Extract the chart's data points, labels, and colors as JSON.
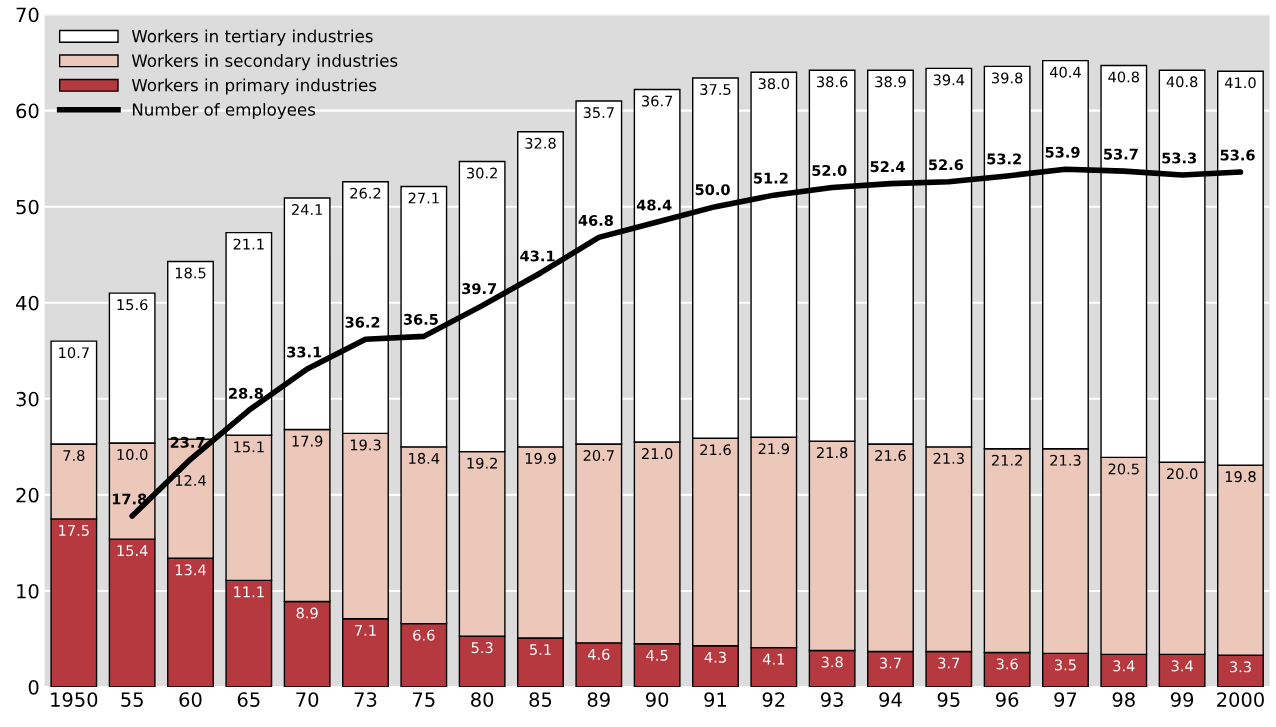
{
  "chart_data": {
    "type": "bar",
    "stacked": true,
    "categories": [
      "1950",
      "55",
      "60",
      "65",
      "70",
      "73",
      "75",
      "80",
      "85",
      "89",
      "90",
      "91",
      "92",
      "93",
      "94",
      "95",
      "96",
      "97",
      "98",
      "99",
      "2000"
    ],
    "series": [
      {
        "name": "Workers in primary industries",
        "color": "#b5393f",
        "values": [
          17.5,
          15.4,
          13.4,
          11.1,
          8.9,
          7.1,
          6.6,
          5.3,
          5.1,
          4.6,
          4.5,
          4.3,
          4.1,
          3.8,
          3.7,
          3.7,
          3.6,
          3.5,
          3.4,
          3.4,
          3.3
        ],
        "value_labels": [
          "17.5",
          "15.4",
          "13.4",
          "11.1",
          "8.9",
          "7.1",
          "6.6",
          "5.3",
          "5.1",
          "4.6",
          "4.5",
          "4.3",
          "4.1",
          "3.8",
          "3.7",
          "3.7",
          "3.6",
          "3.5",
          "3.4",
          "3.4",
          "3.3"
        ]
      },
      {
        "name": "Workers in secondary industries",
        "color": "#ecc8bb",
        "values": [
          7.8,
          10.0,
          12.4,
          15.1,
          17.9,
          19.3,
          18.4,
          19.2,
          19.9,
          20.7,
          21.0,
          21.6,
          21.9,
          21.8,
          21.6,
          21.3,
          21.2,
          21.3,
          20.5,
          20.0,
          19.8
        ],
        "value_labels": [
          "7.8",
          "10.0",
          "12.4",
          "15.1",
          "17.9",
          "19.3",
          "18.4",
          "19.2",
          "19.9",
          "20.7",
          "21.0",
          "21.6",
          "21.9",
          "21.8",
          "21.6",
          "21.3",
          "21.2",
          "21.3",
          "20.5",
          "20.0",
          "19.8"
        ]
      },
      {
        "name": "Workers in tertiary industries",
        "color": "#ffffff",
        "values": [
          10.7,
          15.6,
          18.5,
          21.1,
          24.1,
          26.2,
          27.1,
          30.2,
          32.8,
          35.7,
          36.7,
          37.5,
          38.0,
          38.6,
          38.9,
          39.4,
          39.8,
          40.4,
          40.8,
          40.8,
          41.0
        ],
        "value_labels": [
          "10.7",
          "15.6",
          "18.5",
          "21.1",
          "24.1",
          "26.2",
          "27.1",
          "30.2",
          "32.8",
          "35.7",
          "36.7",
          "37.5",
          "38.0",
          "38.6",
          "38.9",
          "39.4",
          "39.8",
          "40.4",
          "40.8",
          "40.8",
          "41.0"
        ]
      },
      {
        "name": "Number of employees",
        "type": "line",
        "color": "#000000",
        "values": [
          null,
          17.8,
          23.7,
          28.8,
          33.1,
          36.2,
          36.5,
          39.7,
          43.1,
          46.8,
          48.4,
          50.0,
          51.2,
          52.0,
          52.4,
          52.6,
          53.2,
          53.9,
          53.7,
          53.3,
          53.6
        ],
        "value_labels": [
          null,
          "17.8",
          "23.7",
          "28.8",
          "33.1",
          "36.2",
          "36.5",
          "39.7",
          "43.1",
          "46.8",
          "48.4",
          "50.0",
          "51.2",
          "52.0",
          "52.4",
          "52.6",
          "53.2",
          "53.9",
          "53.7",
          "53.3",
          "53.6"
        ]
      }
    ],
    "ylim": [
      0,
      70
    ],
    "yticks": [
      0,
      10,
      20,
      30,
      40,
      50,
      60,
      70
    ],
    "grid": "y",
    "legend": "top left"
  }
}
